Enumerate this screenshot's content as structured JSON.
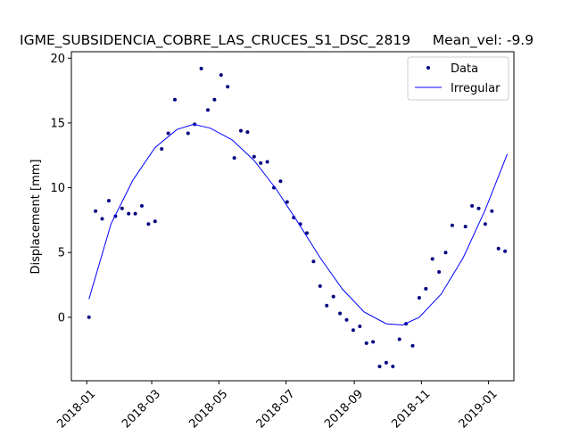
{
  "chart_data": {
    "type": "scatter",
    "title": "IGME_SUBSIDENCIA_COBRE_LAS_CRUCES_S1_DSC_2819     Mean_vel: -9.9",
    "xlabel": "",
    "ylabel": "Displacement [mm]",
    "xlim": [
      "2017-12-18",
      "2019-01-24"
    ],
    "ylim": [
      -4.9,
      20.5
    ],
    "xticks": [
      "2018-01",
      "2018-03",
      "2018-05",
      "2018-07",
      "2018-09",
      "2018-11",
      "2019-01"
    ],
    "yticks": [
      0,
      5,
      10,
      15,
      20
    ],
    "grid": false,
    "legend_position": "top-right",
    "series": [
      {
        "name": "Data",
        "kind": "points",
        "color": "#00007f",
        "points": [
          {
            "x": "2018-01-03",
            "y": 0.0
          },
          {
            "x": "2018-01-09",
            "y": 8.2
          },
          {
            "x": "2018-01-15",
            "y": 7.6
          },
          {
            "x": "2018-01-21",
            "y": 9.0
          },
          {
            "x": "2018-01-27",
            "y": 7.8
          },
          {
            "x": "2018-02-02",
            "y": 8.4
          },
          {
            "x": "2018-02-08",
            "y": 8.0
          },
          {
            "x": "2018-02-14",
            "y": 8.0
          },
          {
            "x": "2018-02-20",
            "y": 8.6
          },
          {
            "x": "2018-02-26",
            "y": 7.2
          },
          {
            "x": "2018-03-04",
            "y": 7.4
          },
          {
            "x": "2018-03-10",
            "y": 13.0
          },
          {
            "x": "2018-03-16",
            "y": 14.2
          },
          {
            "x": "2018-03-22",
            "y": 16.8
          },
          {
            "x": "2018-04-03",
            "y": 14.2
          },
          {
            "x": "2018-04-09",
            "y": 14.9
          },
          {
            "x": "2018-04-15",
            "y": 19.2
          },
          {
            "x": "2018-04-21",
            "y": 16.0
          },
          {
            "x": "2018-04-27",
            "y": 16.8
          },
          {
            "x": "2018-05-03",
            "y": 18.7
          },
          {
            "x": "2018-05-09",
            "y": 17.8
          },
          {
            "x": "2018-05-15",
            "y": 12.3
          },
          {
            "x": "2018-05-21",
            "y": 14.4
          },
          {
            "x": "2018-05-27",
            "y": 14.3
          },
          {
            "x": "2018-06-02",
            "y": 12.4
          },
          {
            "x": "2018-06-08",
            "y": 11.9
          },
          {
            "x": "2018-06-14",
            "y": 12.0
          },
          {
            "x": "2018-06-20",
            "y": 10.0
          },
          {
            "x": "2018-06-26",
            "y": 10.5
          },
          {
            "x": "2018-07-02",
            "y": 8.9
          },
          {
            "x": "2018-07-08",
            "y": 7.7
          },
          {
            "x": "2018-07-14",
            "y": 7.2
          },
          {
            "x": "2018-07-20",
            "y": 6.5
          },
          {
            "x": "2018-07-26",
            "y": 4.3
          },
          {
            "x": "2018-08-01",
            "y": 2.4
          },
          {
            "x": "2018-08-07",
            "y": 0.9
          },
          {
            "x": "2018-08-13",
            "y": 1.6
          },
          {
            "x": "2018-08-19",
            "y": 0.3
          },
          {
            "x": "2018-08-25",
            "y": -0.2
          },
          {
            "x": "2018-08-31",
            "y": -1.0
          },
          {
            "x": "2018-09-06",
            "y": -0.7
          },
          {
            "x": "2018-09-12",
            "y": -2.0
          },
          {
            "x": "2018-09-18",
            "y": -1.9
          },
          {
            "x": "2018-09-24",
            "y": -3.8
          },
          {
            "x": "2018-09-30",
            "y": -3.5
          },
          {
            "x": "2018-10-06",
            "y": -3.8
          },
          {
            "x": "2018-10-12",
            "y": -1.7
          },
          {
            "x": "2018-10-18",
            "y": -0.5
          },
          {
            "x": "2018-10-24",
            "y": -2.2
          },
          {
            "x": "2018-10-30",
            "y": 1.5
          },
          {
            "x": "2018-11-05",
            "y": 2.2
          },
          {
            "x": "2018-11-11",
            "y": 4.5
          },
          {
            "x": "2018-11-17",
            "y": 3.5
          },
          {
            "x": "2018-11-23",
            "y": 5.0
          },
          {
            "x": "2018-11-29",
            "y": 7.1
          },
          {
            "x": "2018-12-11",
            "y": 7.0
          },
          {
            "x": "2018-12-17",
            "y": 8.6
          },
          {
            "x": "2018-12-23",
            "y": 8.4
          },
          {
            "x": "2018-12-29",
            "y": 7.2
          },
          {
            "x": "2019-01-04",
            "y": 8.2
          },
          {
            "x": "2019-01-10",
            "y": 5.3
          },
          {
            "x": "2019-01-16",
            "y": 5.1
          }
        ]
      },
      {
        "name": "Irregular",
        "kind": "line",
        "color": "#0000ff",
        "points": [
          {
            "x": "2018-01-03",
            "y": 1.4
          },
          {
            "x": "2018-01-23",
            "y": 7.2
          },
          {
            "x": "2018-02-12",
            "y": 10.6
          },
          {
            "x": "2018-03-04",
            "y": 13.1
          },
          {
            "x": "2018-03-24",
            "y": 14.5
          },
          {
            "x": "2018-04-08",
            "y": 14.9
          },
          {
            "x": "2018-04-23",
            "y": 14.6
          },
          {
            "x": "2018-05-13",
            "y": 13.7
          },
          {
            "x": "2018-06-02",
            "y": 12.1
          },
          {
            "x": "2018-06-22",
            "y": 9.9
          },
          {
            "x": "2018-07-12",
            "y": 7.3
          },
          {
            "x": "2018-08-01",
            "y": 4.6
          },
          {
            "x": "2018-08-21",
            "y": 2.2
          },
          {
            "x": "2018-09-10",
            "y": 0.4
          },
          {
            "x": "2018-09-30",
            "y": -0.5
          },
          {
            "x": "2018-10-15",
            "y": -0.6
          },
          {
            "x": "2018-10-30",
            "y": 0.0
          },
          {
            "x": "2018-11-19",
            "y": 1.8
          },
          {
            "x": "2018-12-09",
            "y": 4.6
          },
          {
            "x": "2018-12-29",
            "y": 8.3
          },
          {
            "x": "2019-01-18",
            "y": 12.6
          }
        ]
      }
    ]
  }
}
